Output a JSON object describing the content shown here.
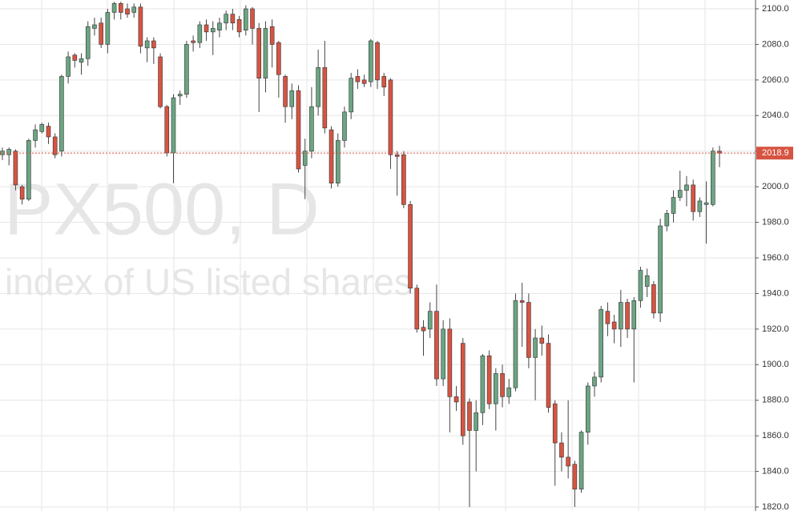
{
  "chart_data": {
    "type": "candlestick",
    "watermark_title": "PX500, D",
    "watermark_subtitle": "index of US listed shares",
    "up_color": "#6ba583",
    "down_color": "#d75442",
    "ylim": [
      1820,
      2100
    ],
    "yticks": [
      {
        "value": 1820,
        "label": "1820.0"
      },
      {
        "value": 1840,
        "label": "1840.0"
      },
      {
        "value": 1860,
        "label": "1860.0"
      },
      {
        "value": 1880,
        "label": "1880.0"
      },
      {
        "value": 1900,
        "label": "1900.0"
      },
      {
        "value": 1920,
        "label": "1920.0"
      },
      {
        "value": 1940,
        "label": "1940.0"
      },
      {
        "value": 1960,
        "label": "1960.0"
      },
      {
        "value": 1980,
        "label": "1980.0"
      },
      {
        "value": 2000,
        "label": "2000.0"
      },
      {
        "value": 2020,
        "label": "2020.0"
      },
      {
        "value": 2040,
        "label": "2040.0"
      },
      {
        "value": 2060,
        "label": "2060.0"
      },
      {
        "value": 2080,
        "label": "2080.0"
      },
      {
        "value": 2100,
        "label": "2100.0"
      }
    ],
    "grid": true,
    "last_price": 2018.9,
    "open": [
      2018,
      2018,
      2020,
      2000,
      1993,
      2026,
      2031,
      2034,
      2028,
      2020,
      2062,
      2074,
      2070,
      2072,
      2089,
      2092,
      2080,
      2098,
      2103,
      2100,
      2098,
      2101,
      2078,
      2082,
      2073,
      2045,
      2019,
      2051,
      2052,
      2082,
      2081,
      2091,
      2087,
      2088,
      2092,
      2097,
      2094,
      2088,
      2100,
      2089,
      2061,
      2090,
      2081,
      2062,
      2045,
      2054,
      2012,
      2020,
      2045,
      2067,
      2032,
      2002,
      2026,
      2042,
      2062,
      2060,
      2059,
      2081,
      2062,
      2060,
      2018,
      2018,
      1990,
      1943,
      1921,
      1920,
      1930,
      1892,
      1920,
      1882,
      1912,
      1879,
      1863,
      1873,
      1905,
      1878,
      1895,
      1882,
      1887,
      1936,
      1935,
      1904,
      1915,
      1912,
      1878,
      1856,
      1848,
      1844,
      1830,
      1862,
      1888,
      1893,
      1930,
      1924,
      1920,
      1935,
      1920,
      1936,
      1944,
      1945,
      1929,
      1978,
      1985,
      1994,
      1998,
      2001,
      1986,
      1990,
      1990,
      2020
    ],
    "high": [
      2022,
      2022,
      2021,
      2001,
      2027,
      2035,
      2036,
      2036,
      2030,
      2063,
      2076,
      2075,
      2075,
      2093,
      2095,
      2095,
      2100,
      2104,
      2104,
      2103,
      2103,
      2103,
      2084,
      2084,
      2075,
      2046,
      2052,
      2054,
      2082,
      2085,
      2093,
      2094,
      2093,
      2095,
      2099,
      2100,
      2096,
      2102,
      2101,
      2092,
      2093,
      2094,
      2082,
      2063,
      2058,
      2057,
      2027,
      2056,
      2077,
      2082,
      2034,
      2030,
      2045,
      2064,
      2066,
      2063,
      2083,
      2082,
      2064,
      2061,
      2020,
      2020,
      1992,
      1945,
      1925,
      1935,
      1945,
      1925,
      1926,
      1888,
      1915,
      1881,
      1880,
      1906,
      1908,
      1898,
      1900,
      1892,
      1940,
      1946,
      1940,
      1920,
      1922,
      1917,
      1880,
      1862,
      1880,
      1846,
      1863,
      1890,
      1896,
      1933,
      1935,
      1928,
      1942,
      1937,
      1938,
      1955,
      1954,
      1947,
      1982,
      1987,
      1998,
      2009,
      2006,
      2004,
      1994,
      2003,
      2022,
      2023
    ],
    "low": [
      2015,
      2012,
      1998,
      1990,
      1992,
      2022,
      2030,
      2024,
      2016,
      2017,
      2058,
      2067,
      2063,
      2068,
      2085,
      2078,
      2075,
      2094,
      2094,
      2095,
      2095,
      2075,
      2070,
      2069,
      2044,
      2017,
      2002,
      2046,
      2050,
      2076,
      2078,
      2082,
      2074,
      2084,
      2088,
      2088,
      2084,
      2085,
      2080,
      2042,
      2053,
      2067,
      2050,
      2036,
      2038,
      2008,
      1993,
      2016,
      2040,
      2030,
      1999,
      2000,
      2022,
      2038,
      2055,
      2056,
      2056,
      2055,
      2051,
      2010,
      1995,
      1988,
      1940,
      1918,
      1905,
      1915,
      1888,
      1888,
      1862,
      1874,
      1855,
      1820,
      1840,
      1866,
      1875,
      1863,
      1876,
      1878,
      1885,
      1910,
      1898,
      1880,
      1905,
      1873,
      1832,
      1840,
      1836,
      1820,
      1828,
      1855,
      1882,
      1890,
      1916,
      1912,
      1910,
      1915,
      1890,
      1932,
      1938,
      1926,
      1924,
      1975,
      1980,
      1992,
      1989,
      1981,
      1983,
      1968,
      1989,
      2011
    ],
    "close": [
      2020,
      2021,
      2001,
      1993,
      2026,
      2032,
      2035,
      2028,
      2018,
      2062,
      2073,
      2071,
      2072,
      2090,
      2091,
      2080,
      2098,
      2103,
      2098,
      2097,
      2101,
      2079,
      2082,
      2078,
      2045,
      2019,
      2050,
      2052,
      2080,
      2081,
      2091,
      2087,
      2089,
      2092,
      2097,
      2092,
      2087,
      2100,
      2089,
      2061,
      2089,
      2080,
      2063,
      2045,
      2054,
      2010,
      2020,
      2045,
      2067,
      2033,
      2002,
      2026,
      2042,
      2061,
      2059,
      2058,
      2082,
      2060,
      2056,
      2018,
      2017,
      1990,
      1943,
      1920,
      1919,
      1930,
      1892,
      1920,
      1882,
      1879,
      1860,
      1863,
      1873,
      1905,
      1878,
      1895,
      1882,
      1887,
      1936,
      1935,
      1904,
      1915,
      1912,
      1876,
      1856,
      1848,
      1843,
      1830,
      1862,
      1888,
      1893,
      1931,
      1923,
      1920,
      1935,
      1920,
      1936,
      1953,
      1950,
      1929,
      1978,
      1985,
      1994,
      1998,
      2001,
      1986,
      1992,
      1991,
      2020,
      2018.9
    ]
  }
}
